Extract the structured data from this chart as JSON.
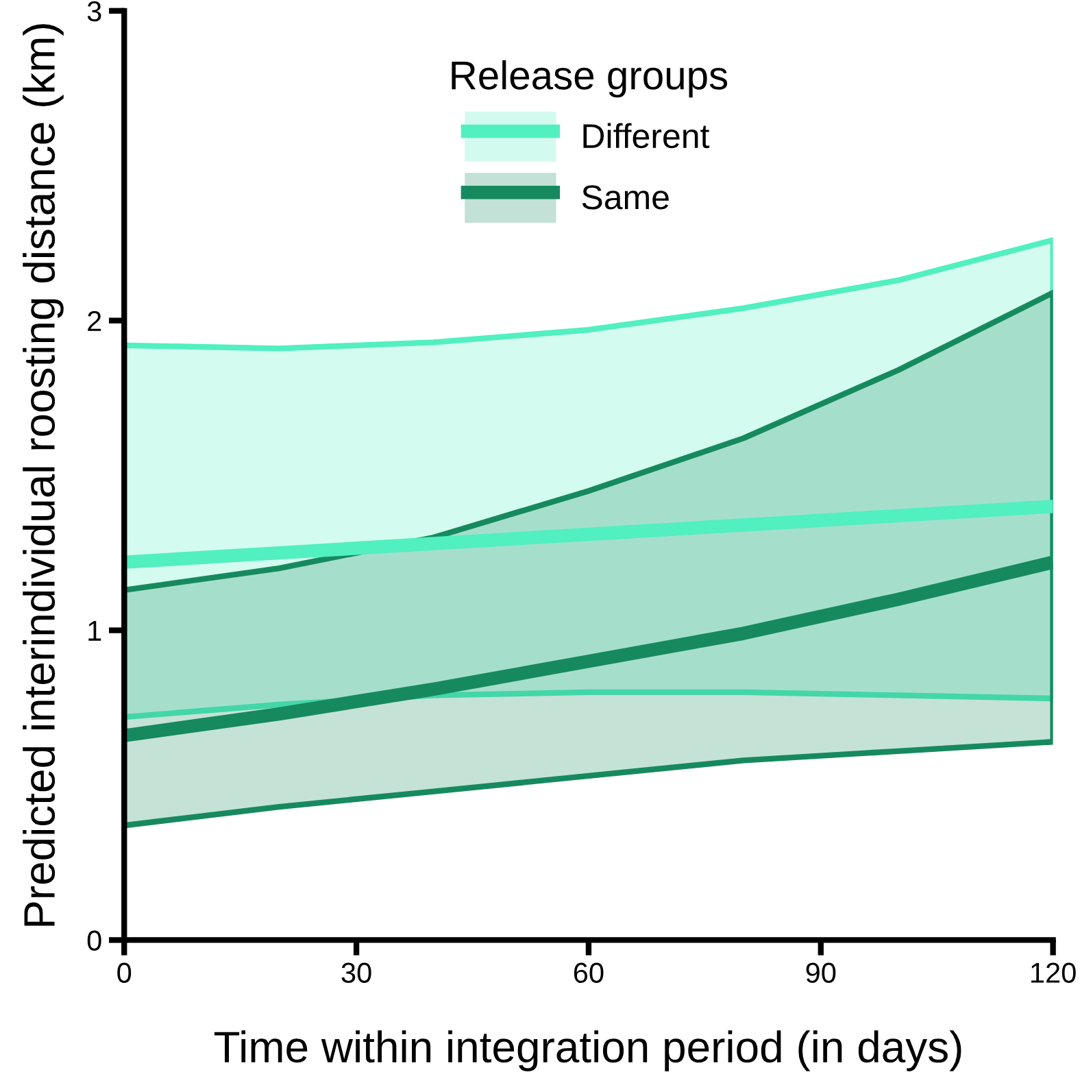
{
  "chart_data": {
    "type": "line",
    "xlabel": "Time within integration period (in days)",
    "ylabel": "Predicted interindividual roosting distance (km)",
    "legend_title": "Release groups",
    "legend": "top",
    "grid": false,
    "x": [
      0,
      20,
      40,
      60,
      80,
      100,
      120
    ],
    "series": [
      {
        "name": "Different",
        "color": "#52efc0",
        "values": [
          1.22,
          1.25,
          1.28,
          1.31,
          1.34,
          1.37,
          1.4
        ],
        "lower": [
          0.72,
          0.76,
          0.79,
          0.8,
          0.8,
          0.79,
          0.78
        ],
        "upper": [
          1.92,
          1.91,
          1.93,
          1.97,
          2.04,
          2.13,
          2.26
        ]
      },
      {
        "name": "Same",
        "color": "#168a5e",
        "values": [
          0.66,
          0.73,
          0.81,
          0.9,
          0.99,
          1.1,
          1.22
        ],
        "lower": [
          0.37,
          0.43,
          0.48,
          0.53,
          0.58,
          0.61,
          0.64
        ],
        "upper": [
          1.13,
          1.2,
          1.3,
          1.45,
          1.62,
          1.84,
          2.09
        ]
      }
    ],
    "xlim": [
      0,
      120
    ],
    "ylim": [
      0,
      3
    ],
    "xticks": [
      0,
      30,
      60,
      90,
      120
    ],
    "yticks": [
      0,
      1,
      2,
      3
    ]
  }
}
